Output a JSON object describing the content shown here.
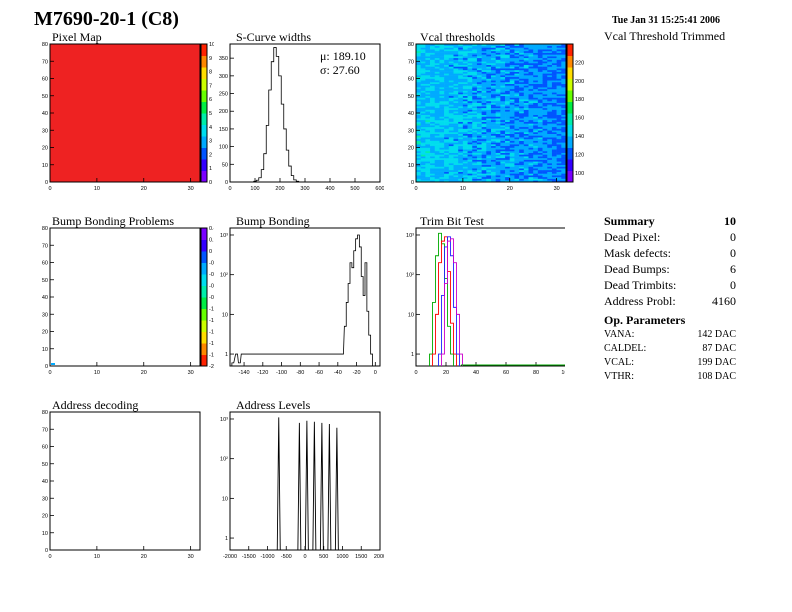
{
  "header": {
    "title": "M7690-20-1 (C8)",
    "date": "Tue Jan 31 15:25:41 2006",
    "vcal_trimmed": "Vcal Threshold Trimmed"
  },
  "summary": {
    "heading": "Summary",
    "total": "10",
    "rows": [
      {
        "label": "Dead Pixel:",
        "value": "0"
      },
      {
        "label": "Mask defects:",
        "value": "0"
      },
      {
        "label": "Dead Bumps:",
        "value": "6"
      },
      {
        "label": "Dead Trimbits:",
        "value": "0"
      },
      {
        "label": "Address Probl:",
        "value": "4160"
      }
    ]
  },
  "op_parameters": {
    "heading": "Op. Parameters",
    "rows": [
      {
        "label": "VANA:",
        "value": "142 DAC"
      },
      {
        "label": "CALDEL:",
        "value": "87 DAC"
      },
      {
        "label": "VCAL:",
        "value": "199 DAC"
      },
      {
        "label": "VTHR:",
        "value": "108 DAC"
      }
    ]
  },
  "colors": {
    "red_map": "#ee2222",
    "palette": [
      "#7a00ff",
      "#3300ff",
      "#0055ff",
      "#00aaff",
      "#00ddee",
      "#00eeaa",
      "#00ee44",
      "#66ff00",
      "#ccff00",
      "#ffdd00",
      "#ff8800",
      "#ff2200"
    ]
  },
  "chart_data": [
    {
      "id": "pixel_map",
      "type": "heatmap",
      "title": "Pixel Map",
      "xlim": [
        0,
        32
      ],
      "ylim": [
        0,
        80
      ],
      "xticks": [
        "0",
        "10",
        "20",
        "30"
      ],
      "yticks": [
        "0",
        "10",
        "20",
        "30",
        "40",
        "50",
        "60",
        "70",
        "80"
      ],
      "zlim": [
        0,
        10
      ],
      "zticks": [
        "0",
        "1",
        "2",
        "3",
        "4",
        "5",
        "6",
        "7",
        "8",
        "9",
        "10"
      ],
      "uniform_value": 10
    },
    {
      "id": "scurve_widths",
      "type": "line",
      "title": "S-Curve widths",
      "xlim": [
        0,
        600
      ],
      "ylim": [
        0,
        390
      ],
      "xticks": [
        "0",
        "100",
        "200",
        "300",
        "400",
        "500",
        "600"
      ],
      "yticks": [
        "0",
        "50",
        "100",
        "150",
        "200",
        "250",
        "300",
        "350"
      ],
      "stats": [
        "μ: 189.10",
        "σ: 27.60"
      ],
      "x": [
        100,
        110,
        120,
        130,
        140,
        150,
        160,
        170,
        180,
        190,
        200,
        210,
        220,
        230,
        240,
        250,
        260,
        270,
        280
      ],
      "y": [
        2,
        5,
        12,
        35,
        80,
        160,
        260,
        340,
        380,
        355,
        300,
        220,
        150,
        90,
        45,
        18,
        6,
        2,
        0
      ]
    },
    {
      "id": "vcal_thresholds",
      "type": "heatmap",
      "title": "Vcal thresholds",
      "xlim": [
        0,
        32
      ],
      "ylim": [
        0,
        80
      ],
      "xticks": [
        "0",
        "10",
        "20",
        "30"
      ],
      "yticks": [
        "0",
        "10",
        "20",
        "30",
        "40",
        "50",
        "60",
        "70",
        "80"
      ],
      "zlim": [
        90,
        240
      ],
      "zticks": [
        "100",
        "120",
        "140",
        "160",
        "180",
        "200",
        "220"
      ],
      "mean_value": 142
    },
    {
      "id": "bump_bonding_problems",
      "type": "heatmap",
      "title": "Bump Bonding Problems",
      "xlim": [
        0,
        32
      ],
      "ylim": [
        0,
        80
      ],
      "xticks": [
        "0",
        "10",
        "20",
        "30"
      ],
      "yticks": [
        "0",
        "10",
        "20",
        "30",
        "40",
        "50",
        "60",
        "70",
        "80"
      ],
      "zlim": [
        -2,
        0.5
      ],
      "zticks": [
        "0.4",
        "0.2",
        "0",
        "-0.2",
        "-0.4",
        "-0.6",
        "-0.8",
        "-1",
        "-1.2",
        "-1.4",
        "-1.6",
        "-1.8",
        "-2"
      ]
    },
    {
      "id": "bump_bonding",
      "type": "line",
      "title": "Bump Bonding",
      "xlim": [
        -155,
        5
      ],
      "ylim": [
        0.5,
        1500
      ],
      "log_y": true,
      "xticks": [
        "-140",
        "-120",
        "-100",
        "-80",
        "-60",
        "-40",
        "-20",
        "0"
      ],
      "yticks": [
        "1",
        "10",
        "10²",
        "10³"
      ],
      "x": [
        -152,
        -148,
        -145,
        -142,
        -35,
        -32,
        -30,
        -28,
        -26,
        -24,
        -22,
        -20,
        -18,
        -16,
        -14,
        -12,
        -10,
        -8,
        -6,
        -4,
        -2
      ],
      "y": [
        0.6,
        1,
        0.6,
        1,
        1,
        5,
        20,
        60,
        200,
        150,
        400,
        800,
        1000,
        500,
        90,
        30,
        200,
        12,
        3,
        1,
        0.5
      ]
    },
    {
      "id": "trim_bit_test",
      "type": "line",
      "title": "Trim Bit Test",
      "xlim": [
        0,
        100
      ],
      "ylim": [
        0.5,
        1500
      ],
      "log_y": true,
      "xticks": [
        "0",
        "20",
        "40",
        "60",
        "80",
        "100"
      ],
      "yticks": [
        "1",
        "10",
        "10²",
        "10³"
      ],
      "series_colors": [
        "#00aa00",
        "#ff0000",
        "#2222ff",
        "#cc00cc"
      ],
      "series": [
        {
          "x": [
            10,
            12,
            14,
            16,
            18,
            20,
            22,
            24
          ],
          "y": [
            1,
            20,
            300,
            1100,
            600,
            80,
            5,
            1
          ]
        },
        {
          "x": [
            12,
            14,
            16,
            18,
            20,
            22,
            24,
            26
          ],
          "y": [
            1,
            10,
            200,
            700,
            900,
            120,
            6,
            1
          ]
        },
        {
          "x": [
            16,
            18,
            20,
            22,
            24,
            26,
            28
          ],
          "y": [
            1,
            30,
            500,
            900,
            300,
            15,
            1
          ]
        },
        {
          "x": [
            18,
            20,
            22,
            24,
            26,
            28,
            30
          ],
          "y": [
            1,
            60,
            700,
            800,
            200,
            10,
            1
          ]
        }
      ]
    },
    {
      "id": "address_decoding",
      "type": "heatmap",
      "title": "Address decoding",
      "xlim": [
        0,
        32
      ],
      "ylim": [
        0,
        80
      ],
      "xticks": [
        "0",
        "10",
        "20",
        "30"
      ],
      "yticks": [
        "0",
        "10",
        "20",
        "30",
        "40",
        "50",
        "60",
        "70",
        "80"
      ]
    },
    {
      "id": "address_levels",
      "type": "line",
      "title": "Address Levels",
      "xlim": [
        -2000,
        2000
      ],
      "ylim": [
        0.5,
        1500
      ],
      "log_y": true,
      "xticks": [
        "-2000",
        "-1500",
        "-1000",
        "-500",
        "0",
        "500",
        "1000",
        "1500",
        "2000"
      ],
      "yticks": [
        "1",
        "10",
        "10²",
        "10³"
      ],
      "peaks": [
        -700,
        -150,
        50,
        250,
        450,
        650,
        850
      ],
      "peak_heights": [
        1100,
        800,
        900,
        850,
        800,
        750,
        600
      ]
    }
  ]
}
